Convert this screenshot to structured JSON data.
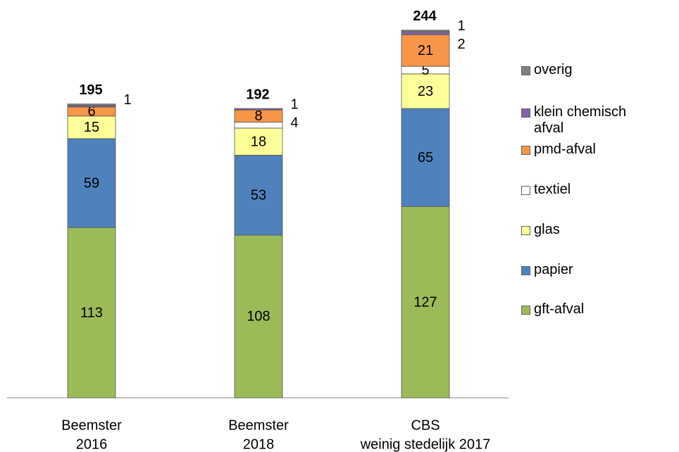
{
  "chart_data": {
    "type": "stacked_bar",
    "categories": [
      [
        "Beemster",
        "2016"
      ],
      [
        "Beemster",
        "2018"
      ],
      [
        "CBS",
        "weinig stedelijk 2017"
      ]
    ],
    "totals": [
      195,
      192,
      244
    ],
    "series": [
      {
        "name": "gft-afval",
        "color": "#9bbb59",
        "values": [
          113,
          108,
          127
        ]
      },
      {
        "name": "papier",
        "color": "#4f81bd",
        "values": [
          59,
          53,
          65
        ]
      },
      {
        "name": "glas",
        "color": "#ffff99",
        "values": [
          15,
          18,
          23
        ]
      },
      {
        "name": "textiel",
        "color": "#ffffff",
        "values": [
          0,
          4,
          5
        ],
        "value_labels": [
          null,
          "4",
          "5"
        ]
      },
      {
        "name": "pmd-afval",
        "color": "#f79646",
        "values": [
          6,
          8,
          21
        ]
      },
      {
        "name": "klein chemisch afval",
        "color": "#8064a2",
        "values": [
          1,
          1,
          2
        ]
      },
      {
        "name": "overig",
        "color": "#808080",
        "values": [
          1,
          0,
          1
        ],
        "value_labels": [
          null,
          null,
          "1"
        ]
      }
    ]
  }
}
